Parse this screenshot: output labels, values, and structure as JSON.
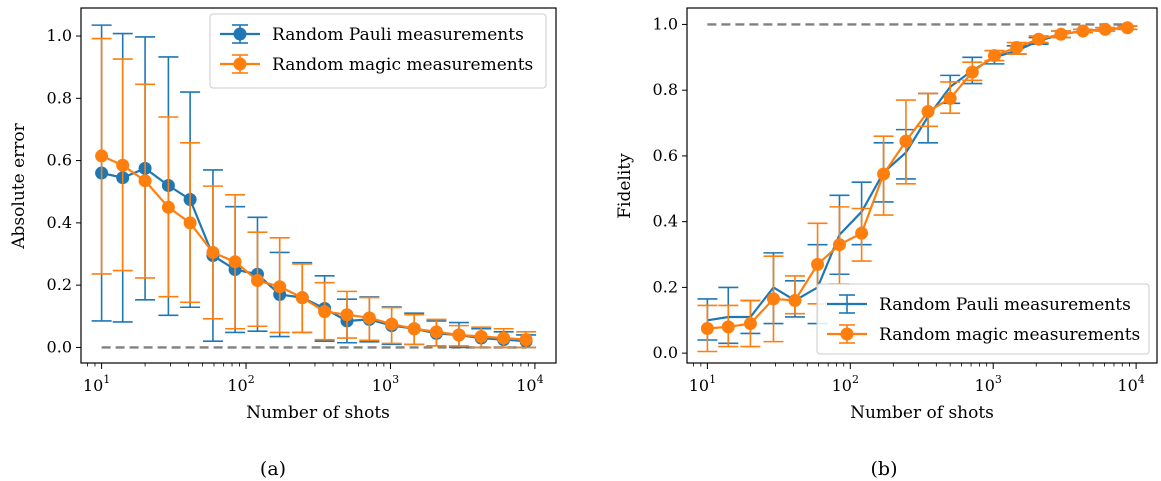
{
  "colors": {
    "pauli": "#1f77b4",
    "magic": "#ff7f0e",
    "reference": "#808080",
    "axis": "#000000"
  },
  "charts": [
    {
      "caption": "(a)",
      "xlabel": "Number of shots",
      "ylabel": "Absolute error",
      "x_ticks": [
        {
          "value": 10,
          "base": "10",
          "exp": "1"
        },
        {
          "value": 100,
          "base": "10",
          "exp": "2"
        },
        {
          "value": 1000,
          "base": "10",
          "exp": "3"
        },
        {
          "value": 10000,
          "base": "10",
          "exp": "4"
        }
      ],
      "y_ticks": [
        "0.0",
        "0.2",
        "0.4",
        "0.6",
        "0.8",
        "1.0"
      ],
      "legend": [
        "Random Pauli measurements",
        "Random magic measurements"
      ]
    },
    {
      "caption": "(b)",
      "xlabel": "Number of shots",
      "ylabel": "Fidelity",
      "x_ticks": [
        {
          "value": 10,
          "base": "10",
          "exp": "1"
        },
        {
          "value": 100,
          "base": "10",
          "exp": "2"
        },
        {
          "value": 1000,
          "base": "10",
          "exp": "3"
        },
        {
          "value": 10000,
          "base": "10",
          "exp": "4"
        }
      ],
      "y_ticks": [
        "0.0",
        "0.2",
        "0.4",
        "0.6",
        "0.8",
        "1.0"
      ],
      "legend": [
        "Random Pauli measurements",
        "Random magic measurements"
      ]
    }
  ],
  "chart_data": [
    {
      "type": "line",
      "x_scale": "log",
      "xlim": [
        7.2,
        14000
      ],
      "ylim": [
        -0.05,
        1.09
      ],
      "grid": false,
      "legend_position": "upper-right",
      "x": [
        10,
        14,
        20,
        29,
        41,
        59,
        84,
        120,
        171,
        245,
        350,
        500,
        714,
        1020,
        1460,
        2080,
        2980,
        4250,
        6080,
        8690
      ],
      "reference_line": {
        "y": 0.0,
        "style": "dashed"
      },
      "series": [
        {
          "name": "Random Pauli measurements",
          "marker": "circle",
          "y": [
            0.56,
            0.545,
            0.575,
            0.52,
            0.475,
            0.295,
            0.25,
            0.235,
            0.17,
            0.16,
            0.125,
            0.085,
            0.09,
            0.07,
            0.06,
            0.045,
            0.04,
            0.03,
            0.025,
            0.02
          ],
          "y_low": [
            0.085,
            0.082,
            0.153,
            0.103,
            0.129,
            0.02,
            0.048,
            0.052,
            0.035,
            0.048,
            0.02,
            0.015,
            0.018,
            0.01,
            0.01,
            0.005,
            0.0,
            0.0,
            0.0,
            0.0
          ],
          "y_high": [
            1.035,
            1.008,
            0.997,
            0.933,
            0.82,
            0.57,
            0.452,
            0.418,
            0.305,
            0.272,
            0.23,
            0.155,
            0.162,
            0.13,
            0.11,
            0.085,
            0.08,
            0.06,
            0.05,
            0.04
          ]
        },
        {
          "name": "Random magic measurements",
          "marker": "circle",
          "y": [
            0.615,
            0.585,
            0.535,
            0.45,
            0.4,
            0.305,
            0.275,
            0.215,
            0.195,
            0.16,
            0.115,
            0.105,
            0.095,
            0.075,
            0.06,
            0.05,
            0.04,
            0.035,
            0.03,
            0.025
          ],
          "y_low": [
            0.236,
            0.247,
            0.223,
            0.163,
            0.145,
            0.092,
            0.06,
            0.068,
            0.048,
            0.048,
            0.025,
            0.03,
            0.023,
            0.013,
            0.01,
            0.005,
            0.005,
            0.0,
            0.0,
            0.0
          ],
          "y_high": [
            0.992,
            0.926,
            0.845,
            0.74,
            0.657,
            0.518,
            0.49,
            0.37,
            0.352,
            0.268,
            0.208,
            0.18,
            0.16,
            0.128,
            0.105,
            0.09,
            0.07,
            0.065,
            0.06,
            0.05
          ]
        }
      ]
    },
    {
      "type": "line",
      "x_scale": "log",
      "xlim": [
        7.2,
        14000
      ],
      "ylim": [
        -0.03,
        1.05
      ],
      "grid": false,
      "legend_position": "lower-right",
      "x": [
        10,
        14,
        20,
        29,
        41,
        59,
        84,
        120,
        171,
        245,
        350,
        500,
        714,
        1020,
        1460,
        2080,
        2980,
        4250,
        6080,
        8690
      ],
      "reference_line": {
        "y": 1.0,
        "style": "dashed"
      },
      "series": [
        {
          "name": "Random Pauli measurements",
          "marker": "none",
          "y": [
            0.1,
            0.11,
            0.11,
            0.2,
            0.16,
            0.2,
            0.36,
            0.43,
            0.55,
            0.61,
            0.72,
            0.81,
            0.86,
            0.9,
            0.92,
            0.95,
            0.97,
            0.98,
            0.985,
            0.99
          ],
          "y_low": [
            0.04,
            0.03,
            0.06,
            0.09,
            0.11,
            0.09,
            0.24,
            0.33,
            0.46,
            0.53,
            0.64,
            0.76,
            0.82,
            0.88,
            0.91,
            0.94,
            0.96,
            0.975,
            0.98,
            0.985
          ],
          "y_high": [
            0.165,
            0.2,
            0.16,
            0.305,
            0.22,
            0.33,
            0.48,
            0.52,
            0.64,
            0.68,
            0.79,
            0.845,
            0.9,
            0.92,
            0.935,
            0.96,
            0.98,
            0.985,
            0.99,
            0.995
          ]
        },
        {
          "name": "Random magic measurements",
          "marker": "circle",
          "y": [
            0.075,
            0.08,
            0.09,
            0.165,
            0.16,
            0.27,
            0.33,
            0.365,
            0.545,
            0.645,
            0.735,
            0.775,
            0.855,
            0.905,
            0.93,
            0.955,
            0.97,
            0.98,
            0.985,
            0.99
          ],
          "y_low": [
            0.005,
            0.02,
            0.02,
            0.035,
            0.12,
            0.15,
            0.21,
            0.28,
            0.42,
            0.515,
            0.69,
            0.73,
            0.83,
            0.89,
            0.91,
            0.945,
            0.96,
            0.975,
            0.98,
            0.985
          ],
          "y_high": [
            0.145,
            0.145,
            0.16,
            0.295,
            0.235,
            0.395,
            0.445,
            0.44,
            0.66,
            0.77,
            0.79,
            0.825,
            0.885,
            0.92,
            0.945,
            0.965,
            0.98,
            0.985,
            0.99,
            0.995
          ]
        }
      ]
    }
  ]
}
